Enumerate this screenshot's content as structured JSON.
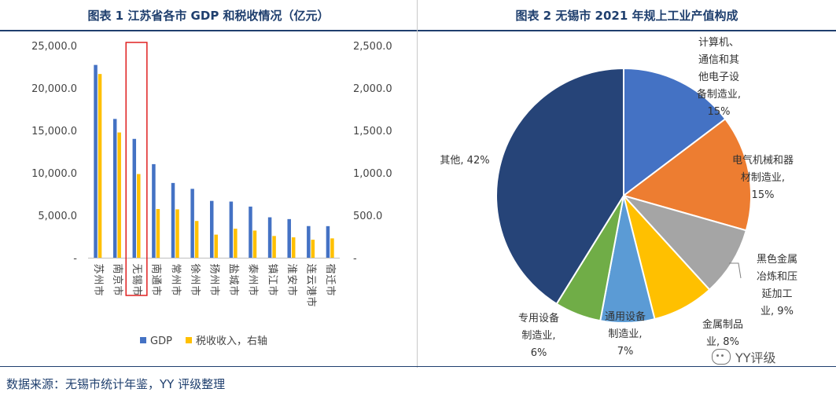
{
  "chart_data": [
    {
      "type": "bar",
      "title": "图表 1 江苏省各市 GDP 和税收情况（亿元）",
      "categories": [
        "苏州市",
        "南京市",
        "无锡市",
        "南通市",
        "常州市",
        "徐州市",
        "扬州市",
        "盐城市",
        "泰州市",
        "镇江市",
        "淮安市",
        "连云港市",
        "宿迁市"
      ],
      "series": [
        {
          "name": "GDP",
          "axis": "left",
          "color": "#4472c4",
          "values": [
            22718,
            16355,
            14003,
            11027,
            8808,
            8117,
            6696,
            6617,
            6025,
            4763,
            4550,
            3728,
            3719
          ]
        },
        {
          "name": "税收收入，右轴",
          "axis": "right",
          "color": "#ffc000",
          "values": [
            2165,
            1476,
            986,
            574,
            570,
            433,
            272,
            342,
            320,
            256,
            240,
            212,
            228
          ]
        }
      ],
      "left_ticks": [
        "-",
        "5,000.0",
        "10,000.0",
        "15,000.0",
        "20,000.0",
        "25,000.0"
      ],
      "right_ticks": [
        "-",
        "500.0",
        "1,000.0",
        "1,500.0",
        "2,000.0",
        "2,500.0"
      ],
      "left_ylim": [
        0,
        25000
      ],
      "right_ylim": [
        0,
        2500
      ],
      "highlight_category": "无锡市",
      "highlight_color": "#e02020",
      "legend_position": "bottom"
    },
    {
      "type": "pie",
      "title": "图表 2 无锡市 2021 年规上工业产值构成",
      "slices": [
        {
          "label": "计算机、通信和其他电子设备制造业，15%",
          "lines": [
            "计算机、",
            "通信和其",
            "他电子设",
            "备制造业,",
            "15%"
          ],
          "value": 15,
          "color": "#4472c4"
        },
        {
          "label": "电气机械和器材制造业，15%",
          "lines": [
            "电气机械和器",
            "材制造业,",
            "15%"
          ],
          "value": 15,
          "color": "#ed7d31"
        },
        {
          "label": "黑色金属冶炼和压延加工业，9%",
          "lines": [
            "黑色金属",
            "冶炼和压",
            "延加工",
            "业, 9%"
          ],
          "value": 9,
          "color": "#a5a5a5"
        },
        {
          "label": "金属制品业，8%",
          "lines": [
            "金属制品",
            "业, 8%"
          ],
          "value": 8,
          "color": "#ffc000"
        },
        {
          "label": "通用设备制造业，7%",
          "lines": [
            "通用设备",
            "制造业,",
            "7%"
          ],
          "value": 7,
          "color": "#5b9bd5"
        },
        {
          "label": "专用设备制造业，6%",
          "lines": [
            "专用设备",
            "制造业,",
            "6%"
          ],
          "value": 6,
          "color": "#70ad47"
        },
        {
          "label": "其他，42%",
          "lines": [
            "其他, 42%"
          ],
          "value": 42,
          "color": "#264478"
        }
      ]
    }
  ],
  "source_note": "数据来源：无锡市统计年鉴，YY 评级整理",
  "watermark": "YY评级"
}
